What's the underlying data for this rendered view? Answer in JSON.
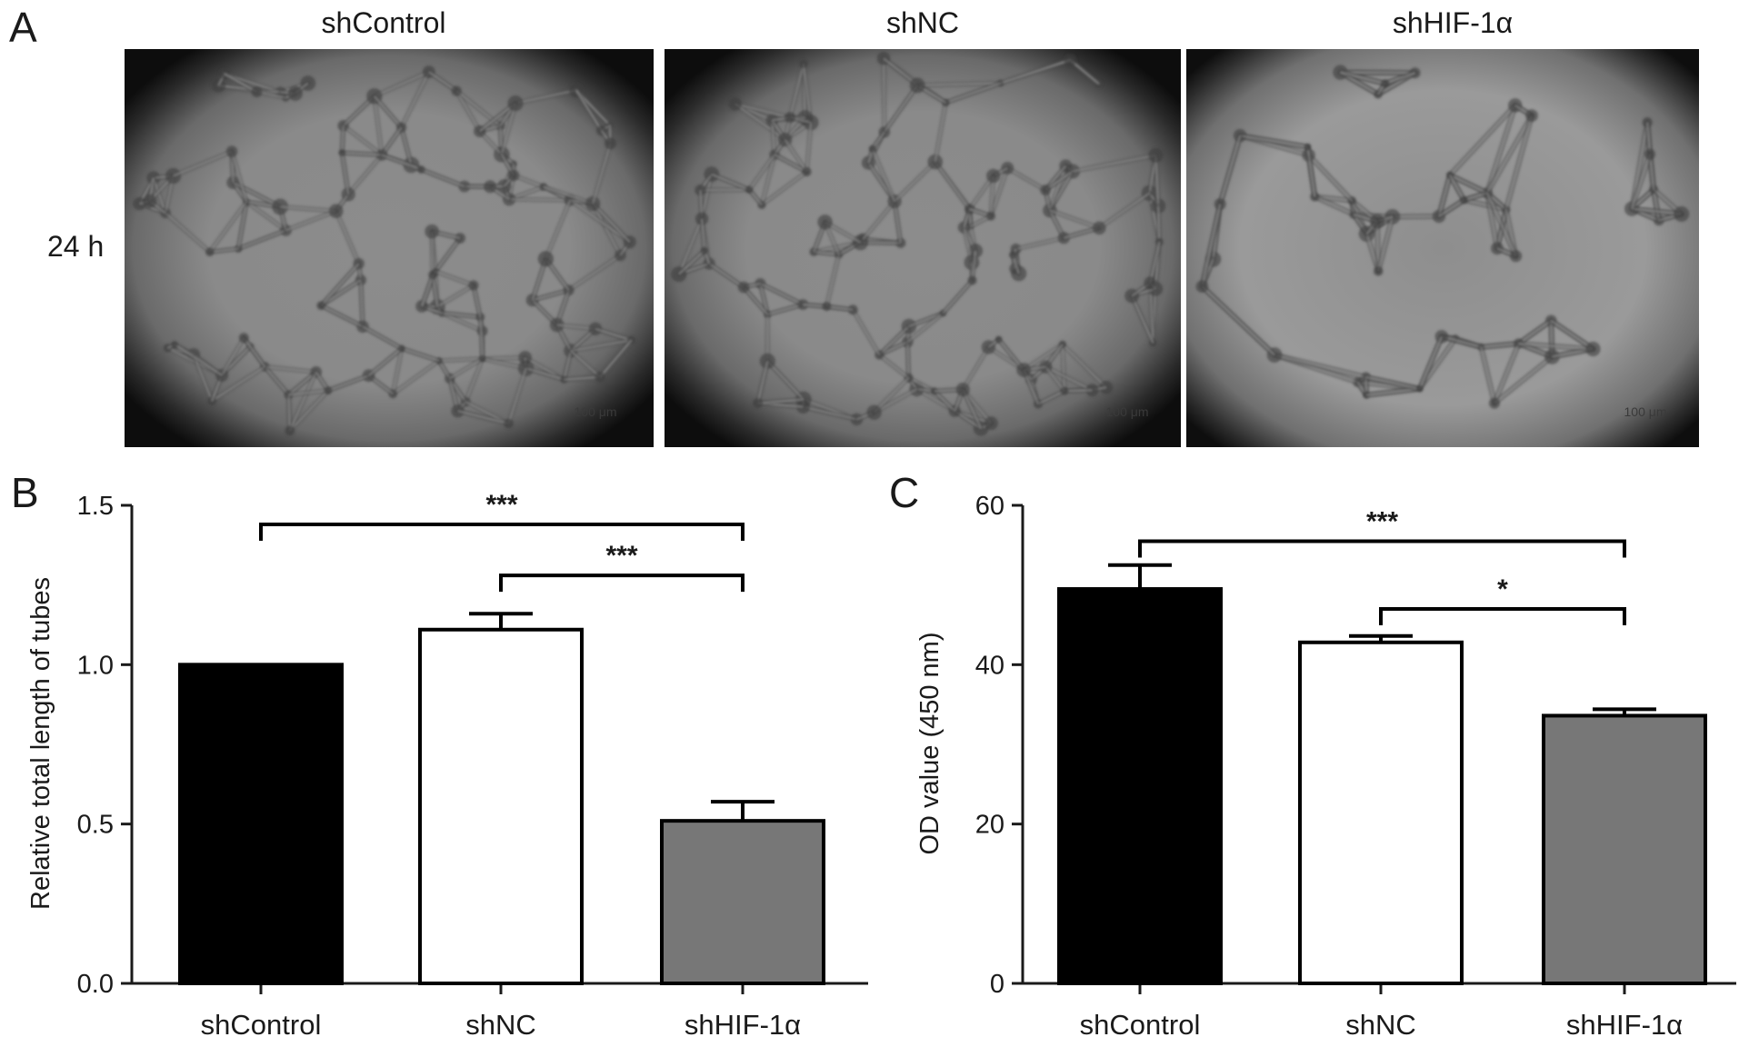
{
  "panel_a": {
    "letter": "A",
    "row_label": "24 h",
    "images": [
      {
        "label": "shControl",
        "scale_text": "100 μm",
        "mesh": "dense"
      },
      {
        "label": "shNC",
        "scale_text": "100 μm",
        "mesh": "dense"
      },
      {
        "label": "shHIF-1α",
        "scale_text": "100 μm",
        "mesh": "sparse"
      }
    ]
  },
  "chart_data": [
    {
      "panel": "B",
      "type": "bar",
      "categories": [
        "shControl",
        "shNC",
        "shHIF-1α"
      ],
      "values": [
        1.0,
        1.11,
        0.51
      ],
      "errors": [
        0.0,
        0.05,
        0.06
      ],
      "colors": [
        "#000000",
        "#ffffff",
        "#777777"
      ],
      "ylabel": "Relative total length of tubes",
      "xlabel": "",
      "ylim": [
        0,
        1.5
      ],
      "yticks": [
        0.0,
        0.5,
        1.0,
        1.5
      ],
      "ytick_labels": [
        "0.0",
        "0.5",
        "1.0",
        "1.5"
      ],
      "significance": [
        {
          "from": 0,
          "to": 2,
          "label": "***",
          "level": 1.44
        },
        {
          "from": 1,
          "to": 2,
          "label": "***",
          "level": 1.28
        }
      ]
    },
    {
      "panel": "C",
      "type": "bar",
      "categories": [
        "shControl",
        "shNC",
        "shHIF-1α"
      ],
      "values": [
        49.5,
        42.8,
        33.6
      ],
      "errors": [
        3.0,
        0.8,
        0.8
      ],
      "colors": [
        "#000000",
        "#ffffff",
        "#777777"
      ],
      "ylabel": "OD value (450 nm)",
      "xlabel": "",
      "ylim": [
        0,
        60
      ],
      "yticks": [
        0,
        20,
        40,
        60
      ],
      "ytick_labels": [
        "0",
        "20",
        "40",
        "60"
      ],
      "significance": [
        {
          "from": 0,
          "to": 2,
          "label": "***",
          "level": 55.5
        },
        {
          "from": 1,
          "to": 2,
          "label": "*",
          "level": 47.0
        }
      ]
    }
  ]
}
